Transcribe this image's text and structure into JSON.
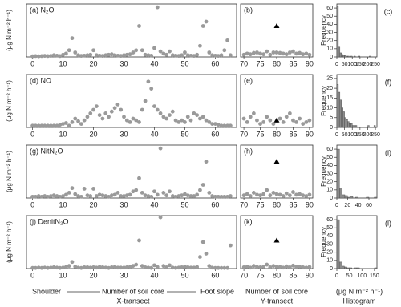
{
  "chart_data": [
    {
      "type": "scatter",
      "title": "(a) N₂O",
      "ylabel": "(μg N m⁻² h⁻¹)",
      "xlim": [
        -2,
        67
      ],
      "xticks": [
        0,
        10,
        20,
        30,
        40,
        50,
        60
      ],
      "ylim": [
        0,
        240
      ],
      "series": [
        {
          "color": "#9a9a9a",
          "x": [
            0,
            1,
            2,
            3,
            4,
            5,
            6,
            7,
            8,
            9,
            10,
            11,
            12,
            13,
            14,
            15,
            16,
            17,
            18,
            19,
            20,
            21,
            22,
            23,
            24,
            25,
            26,
            27,
            28,
            29,
            30,
            31,
            32,
            33,
            34,
            35,
            36,
            37,
            38,
            39,
            40,
            41,
            42,
            43,
            44,
            45,
            46,
            47,
            48,
            49,
            50,
            51,
            52,
            53,
            54,
            55,
            56,
            57,
            58,
            59,
            60,
            61,
            62,
            63,
            64,
            65
          ],
          "values": [
            3,
            4,
            3,
            4,
            5,
            4,
            5,
            8,
            6,
            4,
            10,
            15,
            30,
            85,
            20,
            8,
            5,
            6,
            8,
            10,
            30,
            8,
            6,
            5,
            8,
            10,
            12,
            8,
            6,
            5,
            8,
            10,
            12,
            20,
            30,
            140,
            30,
            10,
            8,
            6,
            40,
            225,
            25,
            15,
            10,
            25,
            8,
            6,
            5,
            8,
            20,
            8,
            6,
            5,
            10,
            50,
            140,
            160,
            20,
            8,
            6,
            5,
            8,
            30,
            75,
            8
          ]
        }
      ]
    },
    {
      "type": "scatter",
      "title": "(b)",
      "xlim": [
        69,
        91
      ],
      "xticks": [
        70,
        75,
        80,
        85,
        90
      ],
      "ylim": [
        0,
        240
      ],
      "series": [
        {
          "color": "#9a9a9a",
          "x": [
            70,
            71,
            72,
            73,
            74,
            75,
            76,
            77,
            78,
            79,
            80,
            81,
            82,
            83,
            84,
            85,
            86,
            87,
            88,
            89,
            90
          ],
          "values": [
            10,
            15,
            12,
            18,
            20,
            15,
            12,
            25,
            10,
            20,
            20,
            18,
            15,
            12,
            20,
            25,
            15,
            18,
            12,
            15,
            10
          ]
        },
        {
          "color": "#000000",
          "marker": "triangle",
          "x": [
            80
          ],
          "values": [
            140
          ]
        }
      ]
    },
    {
      "type": "histogram",
      "title": "(c)",
      "ylabel": "Frequency",
      "color": "#8c8c8c",
      "xlim": [
        0,
        260
      ],
      "xticks": [
        0,
        50,
        100,
        150,
        200,
        250
      ],
      "ylim": [
        0,
        65
      ],
      "yticks": [
        0,
        10,
        20,
        30,
        40,
        50,
        60
      ],
      "bins": [
        0,
        10,
        20,
        30,
        40,
        50,
        60,
        70,
        80,
        90,
        100,
        110,
        120,
        130,
        140,
        150,
        160,
        170,
        180,
        190,
        200,
        210,
        220,
        230,
        240,
        250
      ],
      "values": [
        62,
        12,
        5,
        3,
        2,
        2,
        1,
        1,
        0,
        1,
        0,
        1,
        0,
        0,
        1,
        0,
        0,
        0,
        0,
        0,
        0,
        1,
        0,
        0,
        0
      ]
    },
    {
      "type": "scatter",
      "title": "(d) NO",
      "ylabel": "(μg N m⁻² h⁻¹)",
      "xlim": [
        -2,
        67
      ],
      "xticks": [
        0,
        10,
        20,
        30,
        40,
        50,
        60
      ],
      "ylim": [
        0,
        300
      ],
      "series": [
        {
          "color": "#9a9a9a",
          "x": [
            0,
            1,
            2,
            3,
            4,
            5,
            6,
            7,
            8,
            9,
            10,
            11,
            12,
            13,
            14,
            15,
            16,
            17,
            18,
            19,
            20,
            21,
            22,
            23,
            24,
            25,
            26,
            27,
            28,
            29,
            30,
            31,
            32,
            33,
            34,
            35,
            36,
            37,
            38,
            39,
            40,
            41,
            42,
            43,
            44,
            45,
            46,
            47,
            48,
            49,
            50,
            51,
            52,
            53,
            54,
            55,
            56,
            57,
            58,
            59,
            60,
            61,
            62,
            63,
            64,
            65
          ],
          "values": [
            10,
            10,
            10,
            10,
            10,
            10,
            10,
            10,
            10,
            15,
            20,
            25,
            10,
            30,
            50,
            35,
            20,
            40,
            60,
            80,
            100,
            120,
            70,
            50,
            80,
            60,
            90,
            110,
            130,
            100,
            60,
            40,
            30,
            50,
            40,
            30,
            100,
            150,
            260,
            220,
            120,
            100,
            80,
            60,
            50,
            70,
            90,
            40,
            30,
            40,
            30,
            60,
            40,
            80,
            70,
            50,
            60,
            40,
            30,
            20,
            20,
            15,
            10,
            10,
            10,
            10
          ]
        }
      ]
    },
    {
      "type": "scatter",
      "title": "(e)",
      "xlim": [
        69,
        91
      ],
      "xticks": [
        70,
        75,
        80,
        85,
        90
      ],
      "ylim": [
        0,
        300
      ],
      "series": [
        {
          "color": "#9a9a9a",
          "x": [
            70,
            71,
            72,
            73,
            74,
            75,
            76,
            77,
            78,
            79,
            80,
            81,
            82,
            83,
            84,
            85,
            86,
            87,
            88,
            89,
            90
          ],
          "values": [
            50,
            30,
            60,
            80,
            40,
            20,
            30,
            60,
            40,
            20,
            35,
            50,
            30,
            60,
            80,
            40,
            30,
            50,
            20,
            30,
            40
          ]
        },
        {
          "color": "#000000",
          "marker": "triangle",
          "x": [
            80
          ],
          "values": [
            40
          ]
        }
      ]
    },
    {
      "type": "histogram",
      "title": "(f)",
      "ylabel": "Frequency",
      "color": "#8c8c8c",
      "xlim": [
        0,
        260
      ],
      "xticks": [
        0,
        50,
        100,
        150,
        200,
        250
      ],
      "ylim": [
        0,
        27
      ],
      "yticks": [
        0,
        5,
        10,
        15,
        20,
        25
      ],
      "bins": [
        0,
        10,
        20,
        30,
        40,
        50,
        60,
        70,
        80,
        90,
        100,
        110,
        120,
        130,
        140,
        150,
        160,
        170,
        180,
        190,
        200,
        210,
        220,
        230,
        240,
        250
      ],
      "values": [
        22,
        18,
        14,
        10,
        8,
        5,
        4,
        3,
        2,
        2,
        1,
        1,
        1,
        0,
        0,
        0,
        0,
        0,
        0,
        0,
        1,
        0,
        0,
        0,
        1
      ]
    },
    {
      "type": "scatter",
      "title": "(g) NitN₂O",
      "ylabel": "(μg N m⁻² h⁻¹)",
      "xlim": [
        -2,
        67
      ],
      "xticks": [
        0,
        10,
        20,
        30,
        40,
        50,
        60
      ],
      "ylim": [
        0,
        80
      ],
      "series": [
        {
          "color": "#9a9a9a",
          "x": [
            0,
            1,
            2,
            3,
            4,
            5,
            6,
            7,
            8,
            9,
            10,
            11,
            12,
            13,
            14,
            15,
            16,
            17,
            18,
            19,
            20,
            21,
            22,
            23,
            24,
            25,
            26,
            27,
            28,
            29,
            30,
            31,
            32,
            33,
            34,
            35,
            36,
            37,
            38,
            39,
            40,
            41,
            42,
            43,
            44,
            45,
            46,
            47,
            48,
            49,
            50,
            51,
            52,
            53,
            54,
            55,
            56,
            57,
            58,
            59,
            60,
            61,
            62,
            63,
            64,
            65
          ],
          "values": [
            2,
            2,
            3,
            2,
            3,
            2,
            3,
            4,
            3,
            2,
            3,
            5,
            8,
            15,
            6,
            3,
            2,
            14,
            4,
            3,
            14,
            3,
            5,
            4,
            3,
            2,
            4,
            5,
            8,
            3,
            3,
            4,
            5,
            10,
            12,
            30,
            8,
            4,
            3,
            2,
            10,
            5,
            75,
            8,
            4,
            10,
            3,
            2,
            3,
            4,
            6,
            4,
            3,
            3,
            5,
            12,
            20,
            55,
            8,
            3,
            2,
            2,
            2,
            2,
            2,
            3
          ]
        }
      ]
    },
    {
      "type": "scatter",
      "title": "(h)",
      "xlim": [
        69,
        91
      ],
      "xticks": [
        70,
        75,
        80,
        85,
        90
      ],
      "ylim": [
        0,
        80
      ],
      "series": [
        {
          "color": "#9a9a9a",
          "x": [
            70,
            71,
            72,
            73,
            74,
            75,
            76,
            77,
            78,
            79,
            80,
            81,
            82,
            83,
            84,
            85,
            86,
            87,
            88,
            89,
            90
          ],
          "values": [
            4,
            6,
            3,
            8,
            5,
            4,
            6,
            12,
            4,
            8,
            6,
            5,
            3,
            7,
            4,
            9,
            5,
            6,
            4,
            3,
            5
          ]
        },
        {
          "color": "#000000",
          "marker": "triangle",
          "x": [
            80
          ],
          "values": [
            55
          ]
        }
      ]
    },
    {
      "type": "histogram",
      "title": "(i)",
      "ylabel": "Frequency",
      "color": "#8c8c8c",
      "xlim": [
        0,
        75
      ],
      "xticks": [
        0,
        20,
        40,
        60
      ],
      "ylim": [
        0,
        65
      ],
      "yticks": [
        0,
        10,
        20,
        30,
        40,
        50,
        60
      ],
      "bins": [
        0,
        5,
        10,
        15,
        20,
        25,
        30,
        35,
        40,
        45,
        50,
        55,
        60,
        65,
        70,
        75
      ],
      "values": [
        60,
        12,
        4,
        3,
        1,
        2,
        0,
        1,
        0,
        0,
        0,
        1,
        0,
        0,
        1
      ]
    },
    {
      "type": "scatter",
      "title": "(j) DenitN₂O",
      "ylabel": "(μg N m⁻² h⁻¹)",
      "xlim": [
        -2,
        67
      ],
      "xticks": [
        0,
        10,
        20,
        30,
        40,
        50,
        60
      ],
      "ylim": [
        0,
        160
      ],
      "series": [
        {
          "color": "#9a9a9a",
          "x": [
            0,
            1,
            2,
            3,
            4,
            5,
            6,
            7,
            8,
            9,
            10,
            11,
            12,
            13,
            14,
            15,
            16,
            17,
            18,
            19,
            20,
            21,
            22,
            23,
            24,
            25,
            26,
            27,
            28,
            29,
            30,
            31,
            32,
            33,
            34,
            35,
            36,
            37,
            38,
            39,
            40,
            41,
            42,
            43,
            44,
            45,
            46,
            47,
            48,
            49,
            50,
            51,
            52,
            53,
            54,
            55,
            56,
            57,
            58,
            59,
            60,
            61,
            62,
            63,
            64,
            65
          ],
          "values": [
            2,
            2,
            3,
            2,
            3,
            2,
            3,
            4,
            3,
            2,
            3,
            5,
            8,
            20,
            6,
            3,
            2,
            4,
            4,
            3,
            4,
            3,
            5,
            4,
            3,
            2,
            4,
            5,
            3,
            3,
            3,
            4,
            5,
            8,
            12,
            85,
            8,
            4,
            3,
            2,
            10,
            5,
            155,
            8,
            4,
            10,
            3,
            2,
            3,
            4,
            6,
            4,
            3,
            3,
            5,
            35,
            80,
            45,
            8,
            3,
            2,
            2,
            2,
            2,
            2,
            70
          ]
        }
      ]
    },
    {
      "type": "scatter",
      "title": "(k)",
      "xlim": [
        69,
        91
      ],
      "xticks": [
        70,
        75,
        80,
        85,
        90
      ],
      "ylim": [
        0,
        160
      ],
      "series": [
        {
          "color": "#9a9a9a",
          "x": [
            70,
            71,
            72,
            73,
            74,
            75,
            76,
            77,
            78,
            79,
            80,
            81,
            82,
            83,
            84,
            85,
            86,
            87,
            88,
            89,
            90
          ],
          "values": [
            4,
            6,
            3,
            8,
            5,
            4,
            6,
            12,
            4,
            8,
            6,
            5,
            3,
            7,
            4,
            9,
            5,
            6,
            4,
            3,
            5
          ]
        },
        {
          "color": "#000000",
          "marker": "triangle",
          "x": [
            80
          ],
          "values": [
            85
          ]
        }
      ]
    },
    {
      "type": "histogram",
      "title": "(l)",
      "ylabel": "Frequency",
      "color": "#8c8c8c",
      "xlim": [
        0,
        160
      ],
      "xticks": [
        0,
        50,
        100,
        150
      ],
      "ylim": [
        0,
        65
      ],
      "yticks": [
        0,
        10,
        20,
        30,
        40,
        50,
        60
      ],
      "bins": [
        0,
        10,
        20,
        30,
        40,
        50,
        60,
        70,
        80,
        90,
        100,
        110,
        120,
        130,
        140,
        150,
        160
      ],
      "values": [
        60,
        8,
        3,
        2,
        1,
        1,
        0,
        1,
        1,
        0,
        0,
        0,
        0,
        0,
        0,
        1
      ]
    }
  ],
  "footer": {
    "shoulder": "Shoulder",
    "x_title": "Number of soil core",
    "x_sub": "X-transect",
    "foot": "Foot slope",
    "y_title": "Number of soil core",
    "y_sub": "Y-transect",
    "hist_title": "(μg N m⁻² h⁻¹)",
    "hist_sub": "Histogram"
  }
}
